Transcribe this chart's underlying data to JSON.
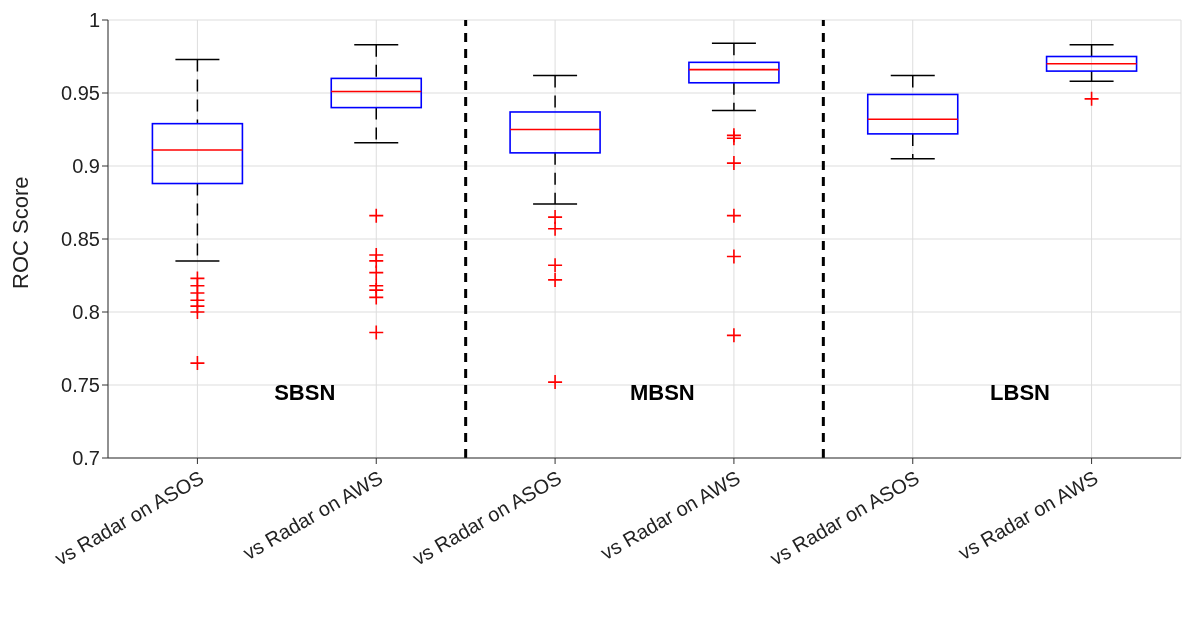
{
  "chart_data": {
    "type": "box",
    "ylabel": "ROC Score",
    "categories": [
      "vs Radar on ASOS",
      "vs Radar on AWS",
      "vs Radar on ASOS",
      "vs Radar on AWS",
      "vs Radar on ASOS",
      "vs Radar on AWS"
    ],
    "series": [
      {
        "color": "#0000ff",
        "boxes": [
          {
            "low": 0.835,
            "q1": 0.888,
            "median": 0.911,
            "q3": 0.929,
            "high": 0.973,
            "outliers": [
              0.823,
              0.818,
              0.813,
              0.808,
              0.804,
              0.8,
              0.765
            ]
          },
          {
            "low": 0.916,
            "q1": 0.94,
            "median": 0.951,
            "q3": 0.96,
            "high": 0.983,
            "outliers": [
              0.866,
              0.839,
              0.835,
              0.827,
              0.818,
              0.815,
              0.81,
              0.786
            ]
          },
          {
            "low": 0.874,
            "q1": 0.909,
            "median": 0.925,
            "q3": 0.937,
            "high": 0.962,
            "outliers": [
              0.865,
              0.857,
              0.832,
              0.822,
              0.752
            ]
          },
          {
            "low": 0.938,
            "q1": 0.957,
            "median": 0.966,
            "q3": 0.971,
            "high": 0.984,
            "outliers": [
              0.921,
              0.919,
              0.902,
              0.866,
              0.838,
              0.784
            ]
          },
          {
            "low": 0.905,
            "q1": 0.922,
            "median": 0.932,
            "q3": 0.949,
            "high": 0.962
          },
          {
            "low": 0.958,
            "q1": 0.965,
            "median": 0.97,
            "q3": 0.975,
            "high": 0.983,
            "outliers": [
              0.946
            ]
          }
        ]
      }
    ],
    "ylim": [
      0.7,
      1
    ],
    "yticks": [
      0.7,
      0.75,
      0.8,
      0.85,
      0.9,
      0.95,
      {
        "value": 1,
        "label": "1"
      }
    ],
    "grid": true,
    "marker": "cross",
    "annotations": [
      "SBSN",
      "MBSN",
      "LBSN"
    ]
  }
}
